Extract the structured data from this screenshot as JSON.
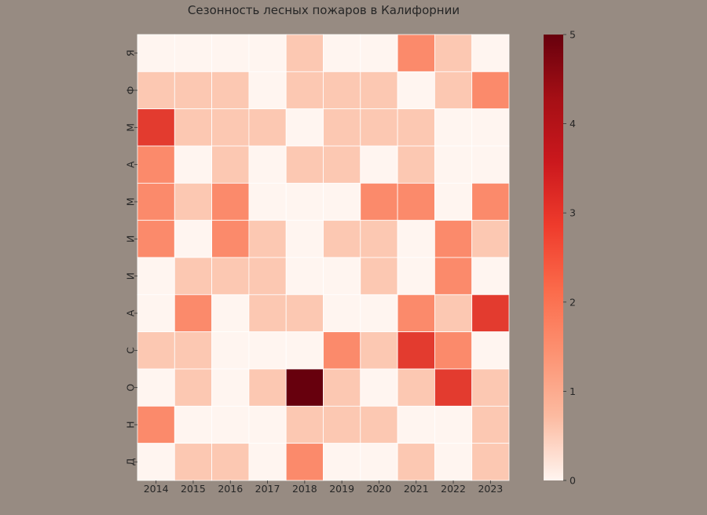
{
  "chart_data": {
    "type": "heatmap",
    "title": "Сезонность лесных пожаров в Калифорнии",
    "x_categories": [
      "2014",
      "2015",
      "2016",
      "2017",
      "2018",
      "2019",
      "2020",
      "2021",
      "2022",
      "2023"
    ],
    "y_categories": [
      "Я",
      "Ф",
      "М",
      "А",
      "М",
      "И",
      "И",
      "А",
      "С",
      "О",
      "Н",
      "Д"
    ],
    "values": [
      [
        0,
        0,
        0,
        0,
        1,
        0,
        0,
        2,
        1,
        0
      ],
      [
        1,
        1,
        1,
        0,
        1,
        1,
        1,
        0,
        1,
        2
      ],
      [
        3,
        1,
        1,
        1,
        0,
        1,
        1,
        1,
        0,
        0
      ],
      [
        2,
        0,
        1,
        0,
        1,
        1,
        0,
        1,
        0,
        0
      ],
      [
        2,
        1,
        2,
        0,
        0,
        0,
        2,
        2,
        0,
        2
      ],
      [
        2,
        0,
        2,
        1,
        0,
        1,
        1,
        0,
        2,
        1
      ],
      [
        0,
        1,
        1,
        1,
        0,
        0,
        1,
        0,
        2,
        0
      ],
      [
        0,
        2,
        0,
        1,
        1,
        0,
        0,
        2,
        1,
        3
      ],
      [
        1,
        1,
        0,
        0,
        0,
        2,
        1,
        3,
        2,
        0
      ],
      [
        0,
        1,
        0,
        1,
        5,
        1,
        0,
        1,
        3,
        1
      ],
      [
        2,
        0,
        0,
        0,
        1,
        1,
        1,
        0,
        0,
        1
      ],
      [
        0,
        1,
        1,
        0,
        2,
        0,
        0,
        1,
        0,
        1
      ]
    ],
    "colorbar": {
      "min": 0,
      "max": 5,
      "ticks": [
        "0",
        "1",
        "2",
        "3",
        "4",
        "5"
      ]
    },
    "colormap": [
      "#fff5f0",
      "#fcc8b2",
      "#fb8a6b",
      "#e33b2f",
      "#e33b2f",
      "#67000d"
    ],
    "colorscale_stops": [
      "#fff5f0",
      "#fcbba1",
      "#fc9272",
      "#fb6a4a",
      "#ef3b2c",
      "#cb181d",
      "#a50f15",
      "#67000d"
    ],
    "grid": false
  }
}
